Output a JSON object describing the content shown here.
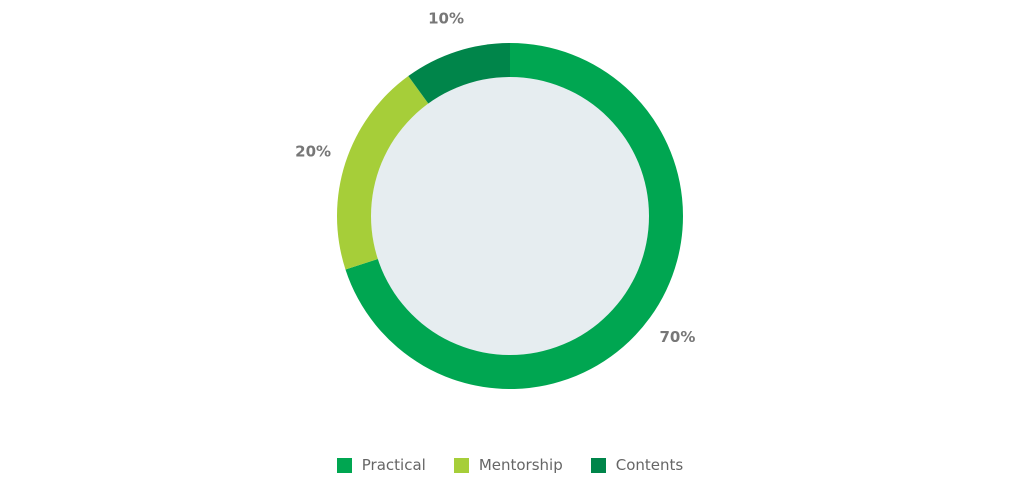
{
  "chart_data": {
    "type": "donut",
    "categories": [
      "Practical",
      "Mentorship",
      "Contents"
    ],
    "values": [
      70,
      20,
      10
    ],
    "value_labels": [
      "70%",
      "20%",
      "10%"
    ],
    "colors": [
      "#00a651",
      "#a6ce39",
      "#00854a"
    ]
  }
}
